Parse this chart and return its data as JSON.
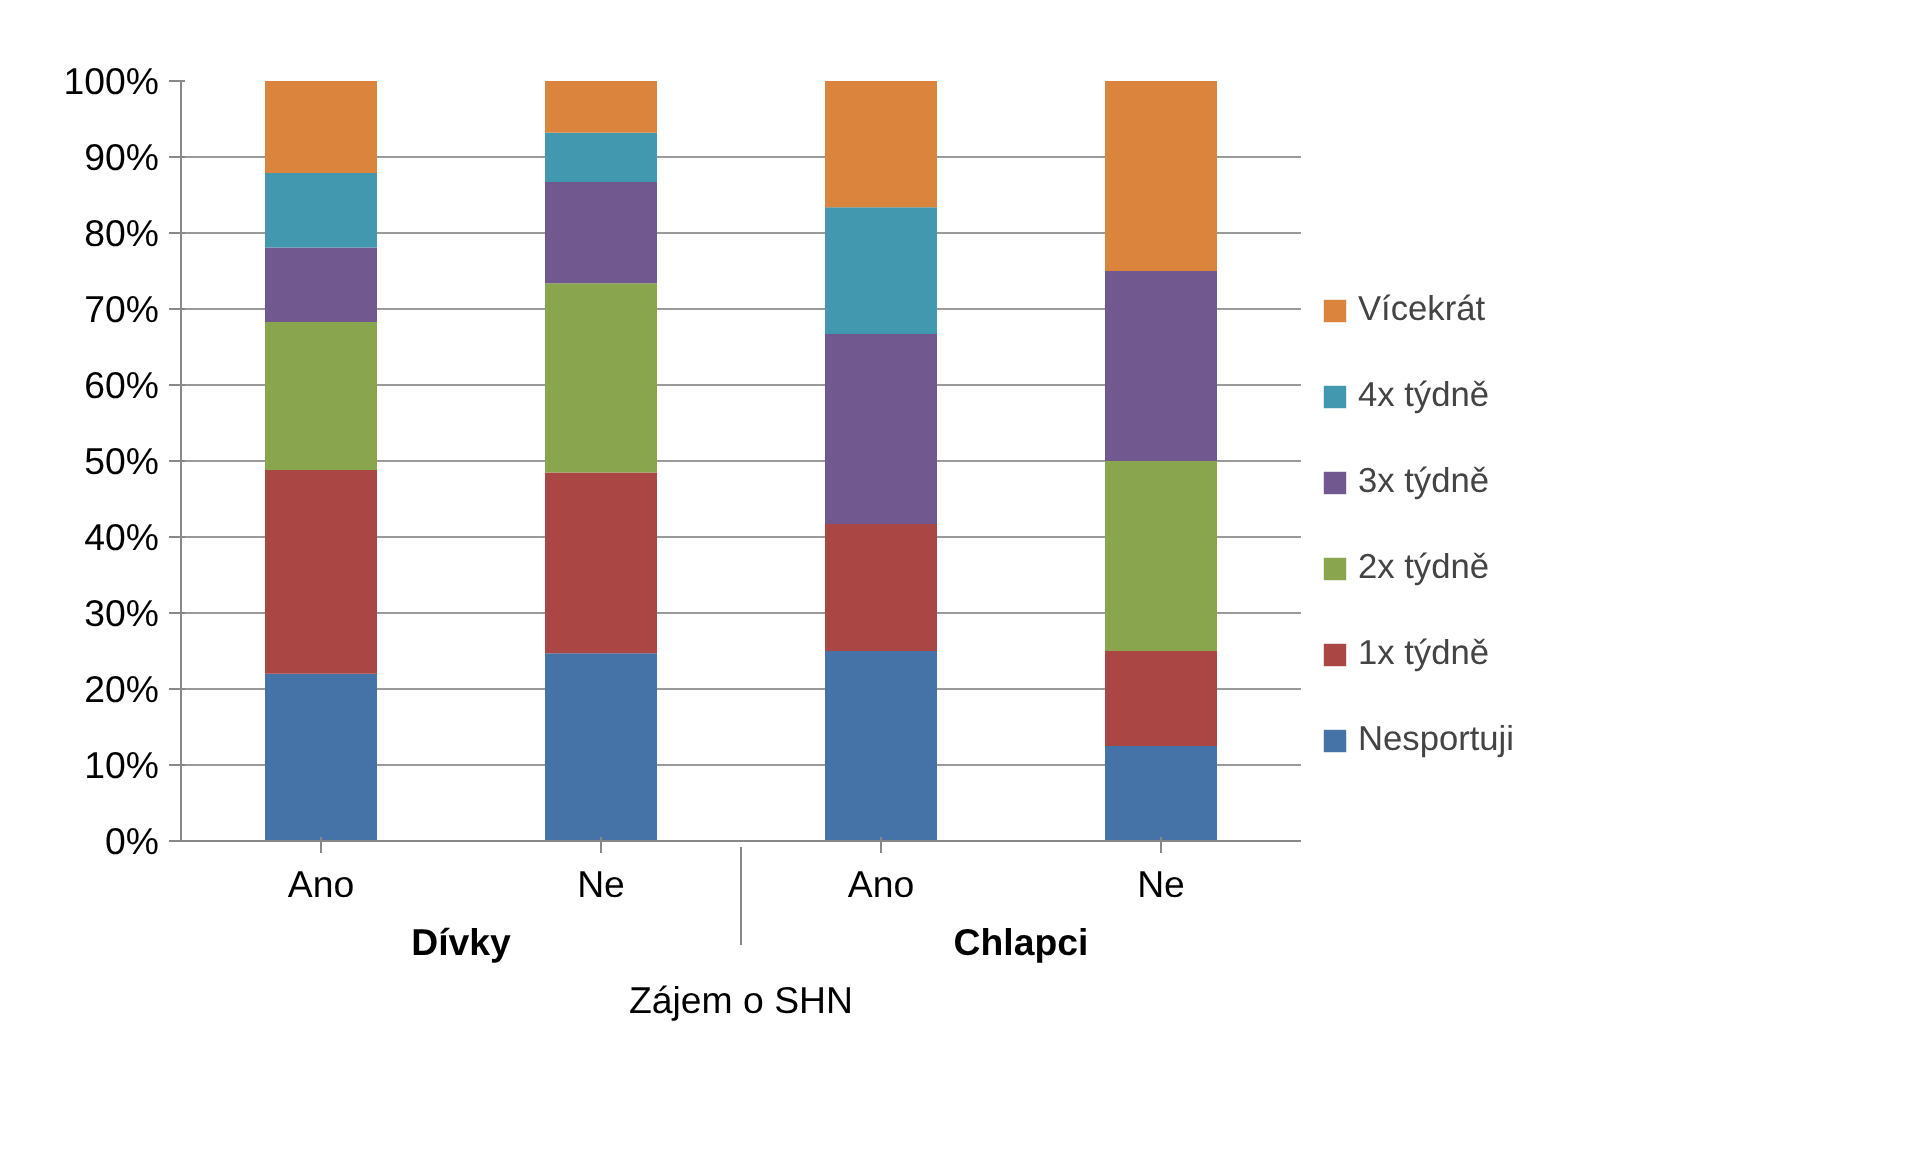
{
  "chart_data": {
    "type": "bar",
    "stacked": true,
    "xlabel": "Zájem o SHN",
    "categories": [
      "Ano",
      "Ne",
      "Ano",
      "Ne"
    ],
    "annotations": [
      "Dívky",
      "Chlapci"
    ],
    "series": [
      {
        "name": "Nesportuji",
        "color": "#4572a7",
        "values": [
          22,
          24.7,
          25,
          12.5
        ]
      },
      {
        "name": "1x týdně",
        "color": "#aa4643",
        "values": [
          26.8,
          23.8,
          16.7,
          12.5
        ]
      },
      {
        "name": "2x týdně",
        "color": "#89a54e",
        "values": [
          19.5,
          24.9,
          0,
          25
        ]
      },
      {
        "name": "3x týdně",
        "color": "#71588f",
        "values": [
          9.8,
          13.3,
          25,
          25
        ]
      },
      {
        "name": "4x týdně",
        "color": "#4198af",
        "values": [
          9.8,
          6.5,
          16.7,
          0
        ]
      },
      {
        "name": "Vícekrát",
        "color": "#db843d",
        "values": [
          12.1,
          6.8,
          16.6,
          25
        ]
      }
    ],
    "ylim": [
      0,
      100
    ],
    "yticks": [
      {
        "value": 0,
        "label": "0%"
      },
      {
        "value": 10,
        "label": "10%"
      },
      {
        "value": 20,
        "label": "20%"
      },
      {
        "value": 30,
        "label": "30%"
      },
      {
        "value": 40,
        "label": "40%"
      },
      {
        "value": 50,
        "label": "50%"
      },
      {
        "value": 60,
        "label": "60%"
      },
      {
        "value": 70,
        "label": "70%"
      },
      {
        "value": 80,
        "label": "80%"
      },
      {
        "value": 90,
        "label": "90%"
      },
      {
        "value": 100,
        "label": "100%"
      }
    ],
    "grid": "y",
    "legend": "right"
  }
}
